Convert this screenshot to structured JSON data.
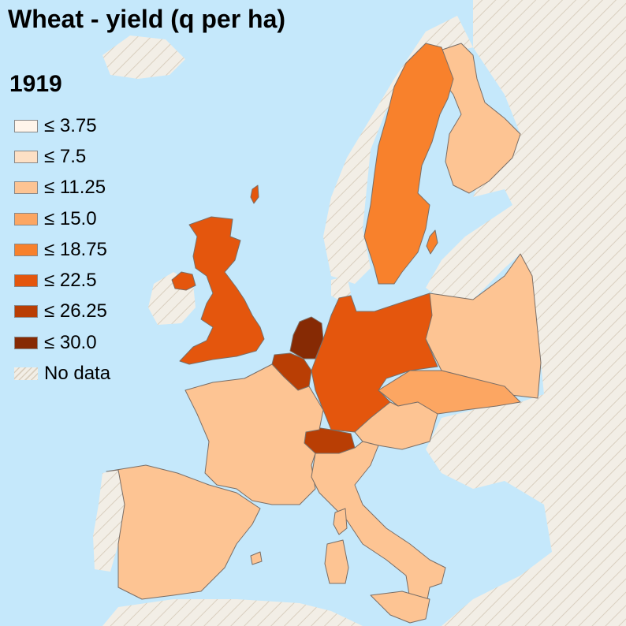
{
  "title": "Wheat - yield (q per ha)",
  "year": "1919",
  "colors": {
    "sea": "#c5e8fb",
    "no_data": "#f2eee6",
    "no_data_hatch": "#d9cfbf",
    "border": "#7a6e66"
  },
  "legend": [
    {
      "label": "≤ 3.75",
      "color": "#fff5eb"
    },
    {
      "label": "≤ 7.5",
      "color": "#fde0c5"
    },
    {
      "label": "≤ 11.25",
      "color": "#fdc493"
    },
    {
      "label": "≤ 15.0",
      "color": "#fca662"
    },
    {
      "label": "≤ 18.75",
      "color": "#f8812c"
    },
    {
      "label": "≤ 22.5",
      "color": "#e4560d"
    },
    {
      "label": "≤ 26.25",
      "color": "#b93e04"
    },
    {
      "label": "≤ 30.0",
      "color": "#862a04"
    },
    {
      "label": "No data",
      "color": "hatch"
    }
  ]
}
